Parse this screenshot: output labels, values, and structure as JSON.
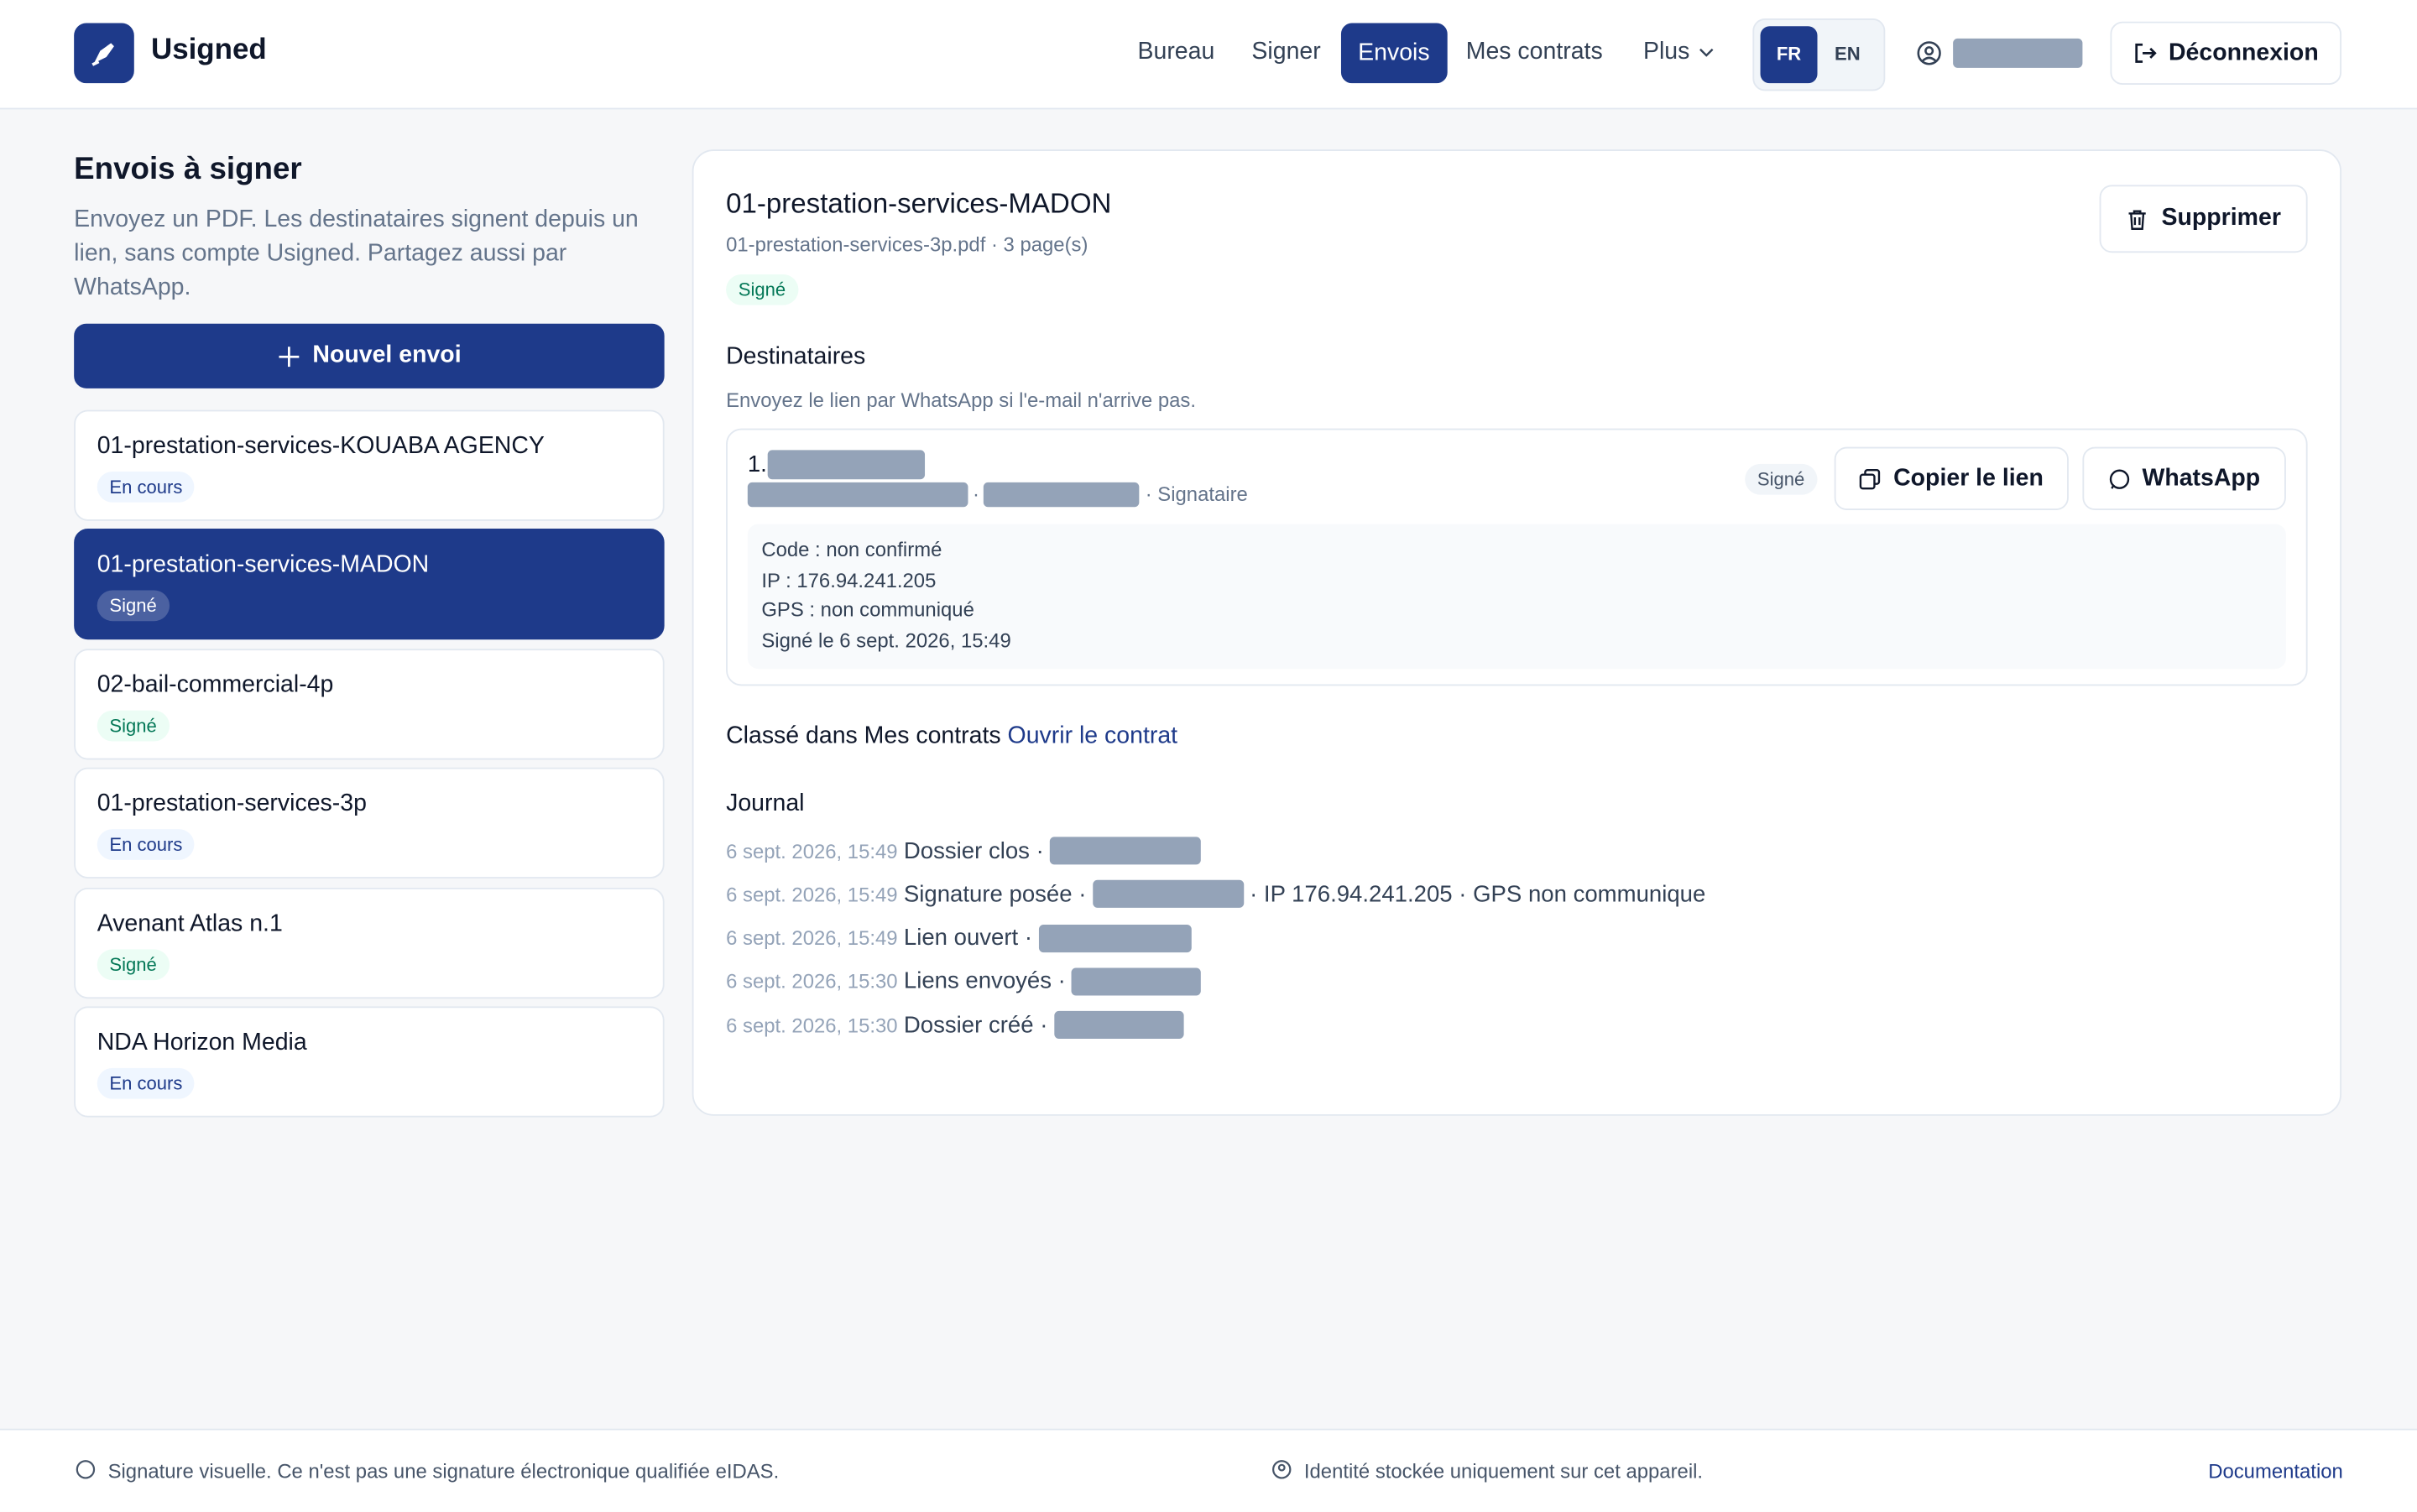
{
  "header": {
    "brand": "Usigned",
    "nav": [
      "Bureau",
      "Signer",
      "Envois",
      "Mes contrats",
      "Plus"
    ],
    "active_nav": 2,
    "languages": [
      "FR",
      "EN"
    ],
    "logout": "Déconnexion"
  },
  "sidebar": {
    "title": "Envois à signer",
    "description": "Envoyez un PDF. Les destinataires signent depuis un lien, sans compte Usigned. Partagez aussi par WhatsApp.",
    "new_button": "Nouvel envoi",
    "selected": 1,
    "items": [
      {
        "name": "01-prestation-services-KOUABA AGENCY",
        "status": "En cours"
      },
      {
        "name": "01-prestation-services-MADON",
        "status": "Signé"
      },
      {
        "name": "02-bail-commercial-4p",
        "status": "Signé"
      },
      {
        "name": "01-prestation-services-3p",
        "status": "En cours"
      },
      {
        "name": "Avenant Atlas n.1",
        "status": "Signé"
      },
      {
        "name": "NDA Horizon Media",
        "status": "En cours"
      }
    ]
  },
  "detail": {
    "title": "01-prestation-services-MADON",
    "file": "01-prestation-services-3p.pdf · 3 page(s)",
    "status": "Signé",
    "delete": "Supprimer",
    "recipients_title": "Destinataires",
    "recipients_hint": "Envoyez le lien par WhatsApp si l'e-mail n'arrive pas.",
    "recipient": {
      "index": "1.",
      "separator": "·",
      "role": "· Signataire",
      "status": "Signé",
      "copy": "Copier le lien",
      "whatsapp": "WhatsApp",
      "details": [
        "Code : non confirmé",
        "IP : 176.94.241.205",
        "GPS : non communiqué",
        "Signé le 6 sept. 2026, 15:49"
      ]
    },
    "filed": "Classé dans Mes contrats",
    "open_contract": "Ouvrir le contrat",
    "journal_title": "Journal",
    "journal": [
      {
        "date": "6 sept. 2026, 15:49",
        "event": "Dossier clos ·"
      },
      {
        "date": "6 sept. 2026, 15:49",
        "event": "Signature posée ·",
        "extra": "· IP 176.94.241.205 · GPS non communique"
      },
      {
        "date": "6 sept. 2026, 15:49",
        "event": "Lien ouvert ·"
      },
      {
        "date": "6 sept. 2026, 15:30",
        "event": "Liens envoyés ·"
      },
      {
        "date": "6 sept. 2026, 15:30",
        "event": "Dossier créé ·"
      }
    ]
  },
  "footer": {
    "left": "Signature visuelle. Ce n'est pas une signature électronique qualifiée eIDAS.",
    "center": "Identité stockée uniquement sur cet appareil.",
    "link": "Documentation"
  }
}
